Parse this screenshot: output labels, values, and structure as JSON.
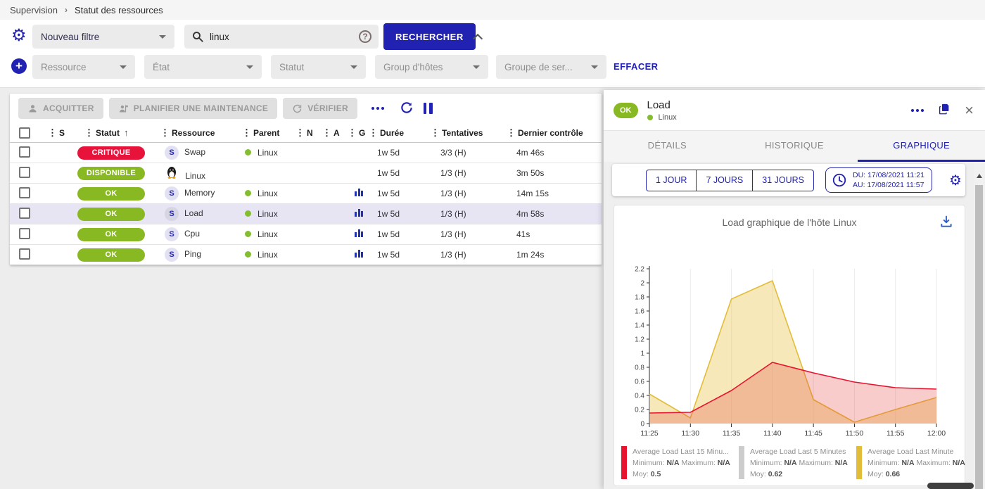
{
  "breadcrumb": {
    "items": [
      "Supervision",
      "Statut des ressources"
    ],
    "separator": "›"
  },
  "filters": {
    "saved_filter_value": "Nouveau filtre",
    "search_value": "linux",
    "search_button_label": "RECHERCHER",
    "help_icon": "?",
    "criterias": [
      "Ressource",
      "État",
      "Statut",
      "Group d'hôtes",
      "Groupe de ser..."
    ],
    "clear_button_label": "EFFACER"
  },
  "toolbar": {
    "acknowledge_label": "ACQUITTER",
    "downtime_label": "PLANIFIER UNE MAINTENANCE",
    "check_label": "VÉRIFIER"
  },
  "table": {
    "columns": [
      "S",
      "Statut",
      "Ressource",
      "Parent",
      "N",
      "A",
      "G",
      "Durée",
      "Tentatives",
      "Dernier contrôle"
    ],
    "sort_icon": "↑",
    "drag_icon": "⋮",
    "service_letter": "S",
    "rows": [
      {
        "status": "CRITIQUE",
        "status_color": "#e8133a",
        "resource": "Swap",
        "kind": "service",
        "parent": "Linux",
        "has_graph": false,
        "duration": "1w 5d",
        "tries": "3/3 (H)",
        "last_check": "4m 46s",
        "selected": false
      },
      {
        "status": "DISPONIBLE",
        "status_color": "#88b922",
        "resource": "Linux",
        "kind": "host",
        "parent": "",
        "has_graph": false,
        "duration": "1w 5d",
        "tries": "1/3 (H)",
        "last_check": "3m 50s",
        "selected": false
      },
      {
        "status": "OK",
        "status_color": "#88b922",
        "resource": "Memory",
        "kind": "service",
        "parent": "Linux",
        "has_graph": true,
        "duration": "1w 5d",
        "tries": "1/3 (H)",
        "last_check": "14m 15s",
        "selected": false
      },
      {
        "status": "OK",
        "status_color": "#88b922",
        "resource": "Load",
        "kind": "service",
        "parent": "Linux",
        "has_graph": true,
        "duration": "1w 5d",
        "tries": "1/3 (H)",
        "last_check": "4m 58s",
        "selected": true
      },
      {
        "status": "OK",
        "status_color": "#88b922",
        "resource": "Cpu",
        "kind": "service",
        "parent": "Linux",
        "has_graph": true,
        "duration": "1w 5d",
        "tries": "1/3 (H)",
        "last_check": "41s",
        "selected": false
      },
      {
        "status": "OK",
        "status_color": "#88b922",
        "resource": "Ping",
        "kind": "service",
        "parent": "Linux",
        "has_graph": true,
        "duration": "1w 5d",
        "tries": "1/3 (H)",
        "last_check": "1m 24s",
        "selected": false
      }
    ]
  },
  "panel": {
    "status": "OK",
    "status_color": "#88b922",
    "title": "Load",
    "parent": "Linux",
    "tabs": [
      {
        "label": "DÉTAILS",
        "active": false
      },
      {
        "label": "HISTORIQUE",
        "active": false
      },
      {
        "label": "GRAPHIQUE",
        "active": true
      }
    ],
    "time_ranges": [
      "1 JOUR",
      "7 JOURS",
      "31 JOURS"
    ],
    "period": {
      "from_label": "DU:",
      "from": "17/08/2021 11:21",
      "to_label": "AU:",
      "to": "17/08/2021 11:57"
    }
  },
  "chart_data": {
    "type": "area",
    "title": "Load graphique de l'hôte Linux",
    "x": [
      "11:25",
      "11:30",
      "11:35",
      "11:40",
      "11:45",
      "11:50",
      "11:55",
      "12:00"
    ],
    "ylim": [
      0,
      2.2
    ],
    "ytick_step": 0.2,
    "grid": "vertical",
    "legend_position": "bottom",
    "legend_labels": {
      "min": "Minimum:",
      "max": "Maximum:",
      "avg": "Moy:"
    },
    "series": [
      {
        "name": "Average Load Last 15 Minu...",
        "color": "#e8132e",
        "fill": "rgba(232,52,52,0.25)",
        "visible": true,
        "values": [
          0.15,
          0.16,
          0.47,
          0.87,
          0.72,
          0.59,
          0.51,
          0.49
        ],
        "min": "N/A",
        "max": "N/A",
        "avg": "0.5"
      },
      {
        "name": "Average Load Last 5 Minutes",
        "color": "#cccccc",
        "fill": "rgba(204,204,204,0.3)",
        "visible": false,
        "values": [],
        "min": "N/A",
        "max": "N/A",
        "avg": "0.62"
      },
      {
        "name": "Average Load Last Minute",
        "color": "#e2bd3a",
        "fill": "rgba(236,205,100,0.45)",
        "visible": true,
        "values": [
          0.42,
          0.08,
          1.77,
          2.03,
          0.34,
          0.02,
          0.2,
          0.37
        ],
        "min": "N/A",
        "max": "N/A",
        "avg": "0.66"
      }
    ]
  },
  "colors": {
    "accent_blue": "#2222b2",
    "badge_green": "#88b922",
    "badge_red": "#e8133a",
    "selected_row": "#e7e5f4"
  }
}
